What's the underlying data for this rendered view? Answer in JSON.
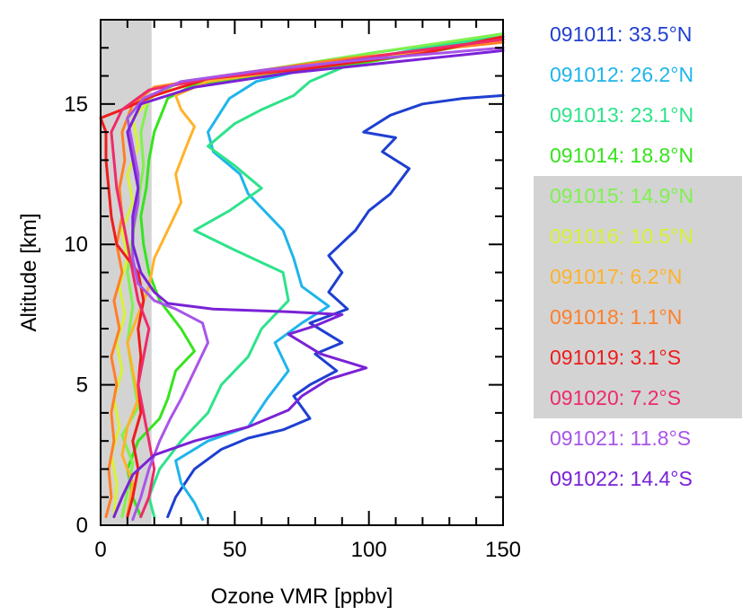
{
  "chart_data": {
    "type": "line",
    "xlabel": "Ozone VMR [ppbv]",
    "ylabel": "Altitude [km]",
    "xlim": [
      0,
      150
    ],
    "ylim": [
      0,
      18
    ],
    "x_ticks": [
      "0",
      "50",
      "100",
      "150"
    ],
    "y_ticks": [
      "0",
      "5",
      "10",
      "15"
    ],
    "grid": false,
    "legend_position": "right",
    "shaded_region": {
      "x_range": [
        0,
        19
      ],
      "color": "#d3d3d3"
    },
    "legend_highlight": {
      "from_index": 4,
      "to_index": 9,
      "color": "#d3d3d3"
    },
    "series": [
      {
        "name": "091011: 33.5°N",
        "color": "#1f3fd1",
        "points": [
          [
            25,
            0.3
          ],
          [
            28,
            1
          ],
          [
            35,
            2
          ],
          [
            45,
            2.7
          ],
          [
            55,
            3.1
          ],
          [
            68,
            3.4
          ],
          [
            78,
            3.8
          ],
          [
            72,
            4.6
          ],
          [
            78,
            5
          ],
          [
            88,
            5.5
          ],
          [
            80,
            6.1
          ],
          [
            90,
            6.5
          ],
          [
            78,
            7.2
          ],
          [
            92,
            7.7
          ],
          [
            85,
            8.3
          ],
          [
            90,
            9
          ],
          [
            85,
            9.6
          ],
          [
            95,
            10.5
          ],
          [
            100,
            11.2
          ],
          [
            108,
            11.8
          ],
          [
            115,
            12.7
          ],
          [
            105,
            13.3
          ],
          [
            110,
            13.8
          ],
          [
            98,
            14
          ],
          [
            108,
            14.6
          ],
          [
            120,
            15
          ],
          [
            135,
            15.2
          ],
          [
            150,
            15.3
          ]
        ]
      },
      {
        "name": "091012: 26.2°N",
        "color": "#1fb5ea",
        "points": [
          [
            38,
            0.2
          ],
          [
            35,
            0.8
          ],
          [
            30,
            1.5
          ],
          [
            28,
            2.3
          ],
          [
            40,
            3
          ],
          [
            55,
            3.5
          ],
          [
            62,
            4.5
          ],
          [
            70,
            5.5
          ],
          [
            65,
            6.5
          ],
          [
            75,
            7.2
          ],
          [
            85,
            7.8
          ],
          [
            75,
            8.5
          ],
          [
            72,
            9.5
          ],
          [
            68,
            10.5
          ],
          [
            55,
            11.8
          ],
          [
            52,
            12.5
          ],
          [
            42,
            13.3
          ],
          [
            40,
            14
          ],
          [
            48,
            15.2
          ],
          [
            58,
            15.8
          ],
          [
            75,
            16.2
          ],
          [
            100,
            16.8
          ],
          [
            130,
            17.2
          ],
          [
            150,
            17.5
          ]
        ]
      },
      {
        "name": "091013: 23.1°N",
        "color": "#2ee38a",
        "points": [
          [
            20,
            0.3
          ],
          [
            18,
            1
          ],
          [
            22,
            2
          ],
          [
            30,
            3
          ],
          [
            40,
            4
          ],
          [
            45,
            5
          ],
          [
            55,
            6
          ],
          [
            60,
            7
          ],
          [
            70,
            8
          ],
          [
            68,
            9
          ],
          [
            50,
            9.8
          ],
          [
            35,
            10.5
          ],
          [
            48,
            11.2
          ],
          [
            60,
            12
          ],
          [
            50,
            12.8
          ],
          [
            40,
            13.5
          ],
          [
            50,
            14.3
          ],
          [
            60,
            14.8
          ],
          [
            72,
            15.3
          ],
          [
            78,
            15.8
          ],
          [
            95,
            16.5
          ],
          [
            120,
            17
          ],
          [
            150,
            17.4
          ]
        ]
      },
      {
        "name": "091014: 18.8°N",
        "color": "#36e41d",
        "points": [
          [
            15,
            0.3
          ],
          [
            12,
            1
          ],
          [
            10,
            2
          ],
          [
            14,
            3
          ],
          [
            22,
            3.8
          ],
          [
            25,
            4.5
          ],
          [
            28,
            5.5
          ],
          [
            35,
            6.2
          ],
          [
            30,
            7
          ],
          [
            22,
            8
          ],
          [
            18,
            9
          ],
          [
            16,
            10
          ],
          [
            15,
            11
          ],
          [
            17,
            12
          ],
          [
            18,
            13
          ],
          [
            20,
            14
          ],
          [
            25,
            15.2
          ],
          [
            35,
            15.7
          ],
          [
            60,
            16
          ],
          [
            100,
            16.5
          ],
          [
            150,
            17.3
          ]
        ]
      },
      {
        "name": "091015: 14.9°N",
        "color": "#7ff24d",
        "points": [
          [
            8,
            0.3
          ],
          [
            10,
            1.2
          ],
          [
            12,
            2.2
          ],
          [
            8,
            3.2
          ],
          [
            14,
            4.2
          ],
          [
            12,
            5.3
          ],
          [
            10,
            6.5
          ],
          [
            12,
            7.8
          ],
          [
            10,
            9
          ],
          [
            12,
            10.3
          ],
          [
            14,
            11.5
          ],
          [
            16,
            12.8
          ],
          [
            15,
            14
          ],
          [
            18,
            15.2
          ],
          [
            30,
            15.8
          ],
          [
            60,
            16.2
          ],
          [
            100,
            16.8
          ],
          [
            150,
            17.5
          ]
        ]
      },
      {
        "name": "091016: 10.5°N",
        "color": "#d9f233",
        "points": [
          [
            5,
            0.3
          ],
          [
            6,
            1.5
          ],
          [
            4,
            2.5
          ],
          [
            7,
            3.5
          ],
          [
            5,
            4.5
          ],
          [
            8,
            5.5
          ],
          [
            6,
            6.5
          ],
          [
            9,
            7.5
          ],
          [
            7,
            8.5
          ],
          [
            10,
            9.5
          ],
          [
            8,
            10.5
          ],
          [
            12,
            11.5
          ],
          [
            10,
            12.5
          ],
          [
            14,
            13.5
          ],
          [
            12,
            14.5
          ],
          [
            20,
            15.3
          ],
          [
            40,
            15.9
          ],
          [
            80,
            16.4
          ],
          [
            130,
            17
          ],
          [
            150,
            17.3
          ]
        ]
      },
      {
        "name": "091017: 6.2°N",
        "color": "#ffb22a",
        "points": [
          [
            10,
            0.4
          ],
          [
            12,
            1.5
          ],
          [
            8,
            2.5
          ],
          [
            10,
            3.5
          ],
          [
            14,
            4.5
          ],
          [
            12,
            5.5
          ],
          [
            10,
            6.5
          ],
          [
            14,
            7.5
          ],
          [
            18,
            8.5
          ],
          [
            20,
            9.5
          ],
          [
            25,
            10.5
          ],
          [
            30,
            11.5
          ],
          [
            28,
            12.5
          ],
          [
            32,
            13.5
          ],
          [
            35,
            14.2
          ],
          [
            30,
            14.8
          ],
          [
            28,
            15.3
          ],
          [
            40,
            15.8
          ],
          [
            70,
            16.2
          ],
          [
            110,
            16.8
          ],
          [
            150,
            17.2
          ]
        ]
      },
      {
        "name": "091018: 1.1°N",
        "color": "#ff7f27",
        "points": [
          [
            2,
            0.3
          ],
          [
            4,
            1
          ],
          [
            3,
            2
          ],
          [
            5,
            3
          ],
          [
            4,
            4
          ],
          [
            6,
            5
          ],
          [
            4,
            6
          ],
          [
            7,
            7
          ],
          [
            5,
            8
          ],
          [
            8,
            9
          ],
          [
            6,
            10
          ],
          [
            8,
            11
          ],
          [
            7,
            12
          ],
          [
            9,
            13
          ],
          [
            8,
            14
          ],
          [
            12,
            15
          ],
          [
            20,
            15.6
          ],
          [
            45,
            16
          ],
          [
            90,
            16.6
          ],
          [
            150,
            17.2
          ]
        ]
      },
      {
        "name": "091019: 3.1°S",
        "color": "#ee1c1c",
        "points": [
          [
            10,
            0.3
          ],
          [
            12,
            1
          ],
          [
            14,
            2
          ],
          [
            12,
            3
          ],
          [
            15,
            4
          ],
          [
            14,
            5
          ],
          [
            15,
            6
          ],
          [
            14,
            7
          ],
          [
            16,
            8
          ],
          [
            14,
            9
          ],
          [
            10,
            9.5
          ],
          [
            6,
            10
          ],
          [
            4,
            11
          ],
          [
            3,
            12
          ],
          [
            2,
            13
          ],
          [
            2,
            14
          ],
          [
            0,
            14.5
          ],
          [
            8,
            14.8
          ],
          [
            20,
            15.3
          ],
          [
            40,
            15.9
          ],
          [
            80,
            16.3
          ],
          [
            120,
            16.8
          ],
          [
            150,
            17.4
          ]
        ]
      },
      {
        "name": "091020: 7.2°S",
        "color": "#ee2a6b",
        "points": [
          [
            15,
            0.3
          ],
          [
            18,
            1
          ],
          [
            20,
            2
          ],
          [
            18,
            3
          ],
          [
            16,
            4
          ],
          [
            14,
            5
          ],
          [
            16,
            6
          ],
          [
            18,
            7
          ],
          [
            14,
            8
          ],
          [
            12,
            9
          ],
          [
            10,
            10
          ],
          [
            8,
            11
          ],
          [
            6,
            12
          ],
          [
            5,
            13
          ],
          [
            4,
            14
          ],
          [
            8,
            14.8
          ],
          [
            18,
            15.5
          ],
          [
            40,
            15.9
          ],
          [
            75,
            16.3
          ],
          [
            110,
            16.8
          ],
          [
            150,
            17.3
          ]
        ]
      },
      {
        "name": "091021: 11.8°S",
        "color": "#a855e8",
        "points": [
          [
            12,
            0.2
          ],
          [
            15,
            1
          ],
          [
            18,
            2
          ],
          [
            22,
            3
          ],
          [
            26,
            3.8
          ],
          [
            30,
            4.5
          ],
          [
            35,
            5.5
          ],
          [
            40,
            6.5
          ],
          [
            38,
            7.2
          ],
          [
            28,
            7.7
          ],
          [
            20,
            8
          ],
          [
            14,
            8.6
          ],
          [
            12,
            9.5
          ],
          [
            12,
            10.5
          ],
          [
            14,
            11.5
          ],
          [
            14,
            12.5
          ],
          [
            12,
            13.5
          ],
          [
            10,
            14.5
          ],
          [
            16,
            15.2
          ],
          [
            30,
            15.8
          ],
          [
            60,
            16.2
          ],
          [
            100,
            16.6
          ],
          [
            150,
            17
          ]
        ]
      },
      {
        "name": "091022: 14.4°S",
        "color": "#7a22d6",
        "points": [
          [
            5,
            0.3
          ],
          [
            8,
            1
          ],
          [
            12,
            1.8
          ],
          [
            20,
            2.5
          ],
          [
            35,
            3
          ],
          [
            55,
            3.5
          ],
          [
            70,
            4.1
          ],
          [
            75,
            4.6
          ],
          [
            85,
            5.2
          ],
          [
            99,
            5.6
          ],
          [
            82,
            6.1
          ],
          [
            70,
            6.8
          ],
          [
            80,
            7.1
          ],
          [
            90,
            7.5
          ],
          [
            70,
            7.6
          ],
          [
            42,
            7.7
          ],
          [
            25,
            7.9
          ],
          [
            20,
            8.3
          ],
          [
            15,
            9
          ],
          [
            12,
            10
          ],
          [
            12,
            11
          ],
          [
            14,
            12
          ],
          [
            12,
            13
          ],
          [
            10,
            14
          ],
          [
            15,
            15
          ],
          [
            35,
            15.6
          ],
          [
            70,
            16.1
          ],
          [
            110,
            16.5
          ],
          [
            150,
            16.9
          ]
        ]
      }
    ]
  }
}
